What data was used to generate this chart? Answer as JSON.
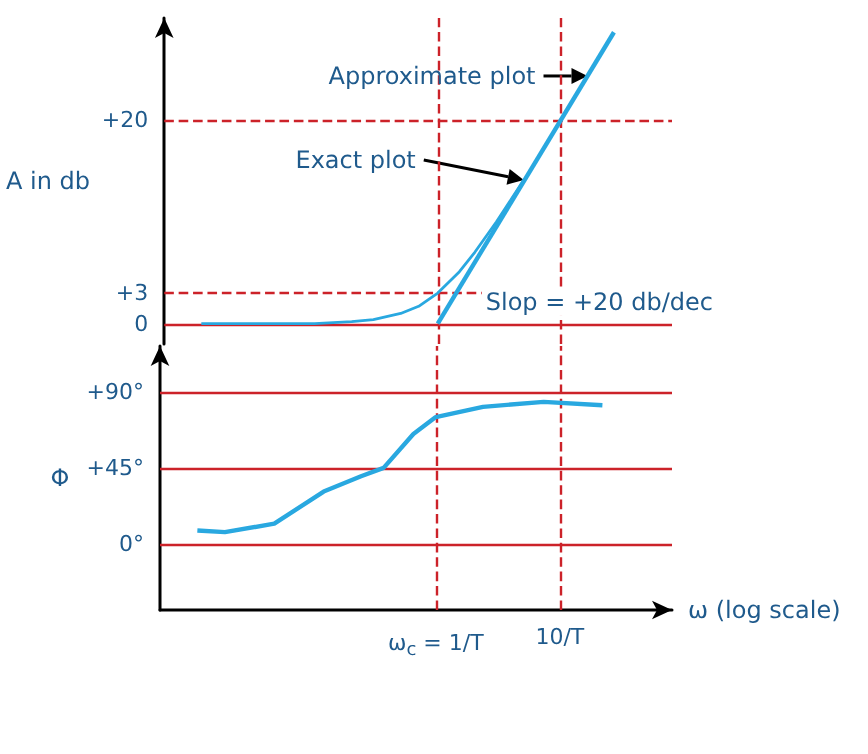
{
  "chart_data": [
    {
      "type": "line",
      "ylabel": "A in db",
      "xlim": [
        0.006,
        80
      ],
      "ylim": [
        -2,
        30
      ],
      "log": "x",
      "tick_labels": "y",
      "marker": "none",
      "yticks": [
        0,
        {
          "value": 3,
          "label": "+3"
        },
        {
          "value": 20,
          "label": "+20"
        }
      ],
      "series": [
        {
          "name": "Approximate plot",
          "color": "#29a8e0",
          "x": [
            1,
            27
          ],
          "values": [
            0,
            28.6
          ]
        },
        {
          "name": "Exact plot",
          "color": "#29a8e0",
          "x": [
            0.012,
            0.1,
            0.2,
            0.3,
            0.5,
            0.7,
            1,
            1.5,
            2,
            3,
            4,
            5
          ],
          "values": [
            0,
            0,
            0.2,
            0.4,
            1,
            1.7,
            3,
            5.1,
            7,
            10,
            12.3,
            14.1
          ]
        }
      ],
      "ref_lines": [
        {
          "axis": "y",
          "value": 0,
          "color": "#cc2229",
          "line_style": "solid"
        },
        {
          "axis": "y",
          "value": 3,
          "color": "#cc2229",
          "line_style": "dashed"
        },
        {
          "axis": "y",
          "value": 20,
          "color": "#cc2229",
          "line_style": "dashed"
        },
        {
          "axis": "x",
          "value": 1,
          "color": "#cc2229",
          "line_style": "dashed"
        },
        {
          "axis": "x",
          "value": 10,
          "color": "#cc2229",
          "line_style": "dashed"
        }
      ],
      "annotations": [
        "Slop = +20 db/dec"
      ]
    },
    {
      "type": "line",
      "ylabel": "Φ",
      "xlabel": "ω (log scale)",
      "xlim": [
        0.006,
        80
      ],
      "ylim": [
        -39,
        117
      ],
      "log": "x",
      "marker": "none",
      "xticks": [
        {
          "value": 1,
          "label": "ω$_{c}$ = 1/T"
        },
        {
          "value": 10,
          "label": "10/T"
        }
      ],
      "yticks": [
        {
          "value": 0,
          "label": "0°"
        },
        {
          "value": 45,
          "label": "+45°"
        },
        {
          "value": 90,
          "label": "+90°"
        }
      ],
      "series": [
        {
          "color": "#29a8e0",
          "x": [
            0.012,
            0.02,
            0.05,
            0.125,
            0.25,
            0.38,
            0.66,
            1,
            2.4,
            7.4,
            22
          ],
          "values": [
            8,
            7,
            12,
            31,
            40,
            45,
            65,
            75,
            81,
            84,
            82
          ]
        }
      ],
      "ref_lines": [
        {
          "axis": "y",
          "value": 0,
          "color": "#cc2229",
          "line_style": "solid"
        },
        {
          "axis": "y",
          "value": 45,
          "color": "#cc2229",
          "line_style": "solid"
        },
        {
          "axis": "y",
          "value": 90,
          "color": "#cc2229",
          "line_style": "solid"
        },
        {
          "axis": "x",
          "value": 1,
          "color": "#cc2229",
          "line_style": "dashed"
        },
        {
          "axis": "x",
          "value": 10,
          "color": "#cc2229",
          "line_style": "dashed"
        }
      ]
    }
  ]
}
